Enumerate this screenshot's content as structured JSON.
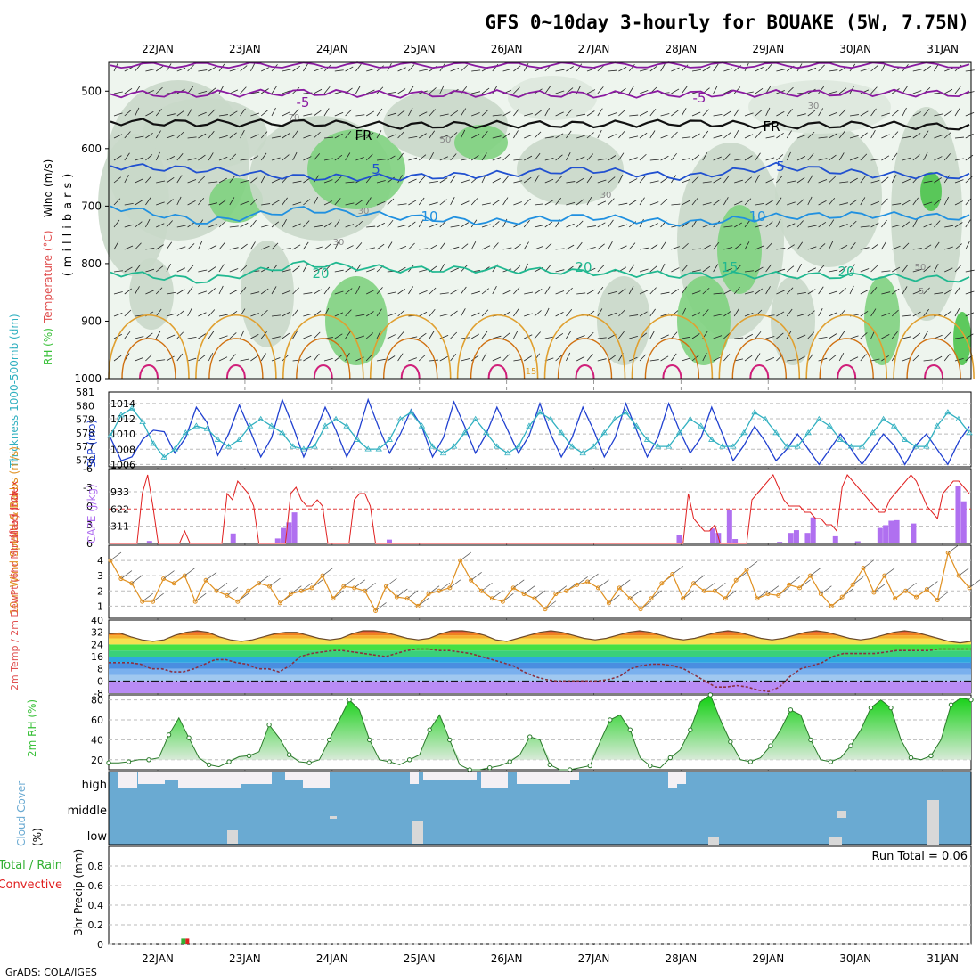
{
  "title": "GFS 0~10day 3-hourly for BOUAKE (5W, 7.75N)",
  "footer": "GrADS: COLA/IGES",
  "colors": {
    "wind": "#000000",
    "temperature": "#e05050",
    "rh": "#38c038",
    "thickness": "#30b0c0",
    "slp": "#2040d0",
    "lifted_index": "#e02020",
    "cape": "#b070f0",
    "wind10m": "#e09020",
    "cloud": "#6aaad2",
    "precip_total": "#33b033",
    "precip_conv": "#e02020"
  },
  "chart_data": [
    {
      "type": "heatmap",
      "panel": "upper-air",
      "ylabel_parts": [
        "RH (%)",
        "Temperature (°C)",
        "Wind (m/s)"
      ],
      "ylabel_mb": "(millibars)",
      "categories": [
        "22JAN",
        "23JAN",
        "24JAN",
        "25JAN",
        "26JAN",
        "27JAN",
        "28JAN",
        "29JAN",
        "30JAN",
        "31JAN"
      ],
      "y_ticks": [
        500,
        600,
        700,
        800,
        900,
        1000
      ],
      "ylim": [
        450,
        1000
      ],
      "series": [
        {
          "name": "-5",
          "values": [
            505,
            505,
            502,
            506,
            504,
            506,
            505,
            504,
            503,
            505
          ]
        },
        {
          "name": "FR",
          "values": [
            553,
            556,
            555,
            560,
            558,
            558,
            555,
            560,
            558,
            563
          ]
        },
        {
          "name": "5",
          "values": [
            630,
            637,
            650,
            650,
            645,
            636,
            650,
            630,
            645,
            648
          ]
        },
        {
          "name": "10",
          "values": [
            700,
            728,
            705,
            718,
            728,
            718,
            730,
            718,
            715,
            720
          ]
        },
        {
          "name": "20",
          "values": [
            815,
            830,
            800,
            810,
            810,
            815,
            820,
            820,
            822,
            828
          ]
        }
      ],
      "contour_labels": [
        "-5",
        "-5",
        "FR",
        "FR",
        "5",
        "5",
        "10",
        "10",
        "20",
        "20",
        "20",
        "15",
        "15",
        "5",
        "30",
        "30",
        "30",
        "50",
        "50",
        "70",
        "30"
      ]
    },
    {
      "type": "line",
      "panel": "thickness-slp",
      "ylabel_left": "Thickness 1000-500mb (dm)",
      "ylabel_right": "SLP (mb)",
      "y_ticks_left": [
        576,
        577,
        578,
        579,
        580,
        581
      ],
      "y_ticks_right": [
        1006,
        1008,
        1010,
        1012,
        1014
      ],
      "series": [
        {
          "name": "SLP (mb)",
          "values": [
            1009.5,
            1006.5,
            1007.0,
            1009.3,
            1010.5,
            1010.3,
            1007.5,
            1009.5,
            1013.5,
            1011.5,
            1007.2,
            1010.0,
            1013.8,
            1010.5,
            1007.0,
            1009.5,
            1014.5,
            1011.0,
            1007.0,
            1010.0,
            1013.5,
            1010.5,
            1007.0,
            1009.8,
            1014.5,
            1010.8,
            1007.5,
            1010.0,
            1013.2,
            1011.0,
            1007.0,
            1009.5,
            1014.2,
            1011.0,
            1007.5,
            1010.0,
            1013.5,
            1010.5,
            1007.5,
            1009.8,
            1014.0,
            1010.0,
            1007.0,
            1009.5,
            1013.5,
            1010.5,
            1007.0,
            1009.5,
            1014.0,
            1010.5,
            1007.0,
            1009.5,
            1014.0,
            1010.5,
            1007.5,
            1009.5,
            1013.5,
            1010.0,
            1006.5,
            1008.5,
            1011.0,
            1009.0,
            1006.5,
            1008.0,
            1010.0,
            1008.0,
            1006.0,
            1008.0,
            1010.0,
            1008.0,
            1006.0,
            1008.0,
            1010.0,
            1008.5,
            1006.0,
            1008.5,
            1010.0,
            1008.0,
            1006.0,
            1009.0,
            1011.0
          ]
        },
        {
          "name": "Thickness (dm)",
          "values": [
            577.8,
            579.3,
            579.8,
            578.8,
            577.2,
            576.2,
            576.8,
            578.0,
            578.5,
            578.3,
            577.5,
            577.0,
            577.5,
            578.5,
            579.0,
            578.5,
            578.0,
            577.0,
            576.8,
            577.0,
            578.5,
            579.0,
            578.5,
            577.5,
            576.8,
            576.8,
            577.5,
            579.0,
            579.5,
            578.5,
            577.0,
            576.5,
            577.0,
            578.0,
            579.0,
            578.0,
            577.0,
            576.5,
            577.0,
            578.5,
            579.5,
            579.0,
            578.0,
            577.0,
            576.5,
            577.0,
            578.0,
            579.0,
            579.5,
            578.5,
            577.5,
            577.0,
            577.0,
            578.0,
            579.0,
            578.5,
            577.5,
            577.0,
            577.0,
            578.0,
            579.5,
            579.0,
            578.0,
            577.0,
            577.0,
            578.0,
            579.0,
            578.5,
            577.5,
            577.0,
            577.0,
            578.0,
            579.0,
            578.5,
            577.5,
            577.0,
            577.0,
            578.5,
            579.5,
            579.0,
            578.0
          ]
        }
      ]
    },
    {
      "type": "bar",
      "panel": "cape-li",
      "ylabel_left": "Lifted Index",
      "ylabel_right": "CAPE (J/kg)",
      "y_ticks_left": [
        -6,
        -3,
        0,
        3,
        6
      ],
      "y_ticks_right": [
        311,
        622,
        933
      ],
      "cape_values": [
        0,
        0,
        0,
        0,
        0,
        0,
        0,
        45,
        0,
        0,
        0,
        0,
        0,
        0,
        0,
        0,
        0,
        0,
        0,
        0,
        0,
        0,
        180,
        0,
        0,
        0,
        0,
        0,
        0,
        0,
        90,
        280,
        380,
        560,
        0,
        0,
        0,
        0,
        0,
        0,
        0,
        0,
        0,
        0,
        0,
        0,
        0,
        0,
        0,
        0,
        70,
        0,
        0,
        0,
        0,
        0,
        0,
        0,
        0,
        0,
        0,
        0,
        0,
        0,
        0,
        0,
        0,
        0,
        0,
        0,
        0,
        0,
        0,
        0,
        0,
        0,
        0,
        0,
        0,
        0,
        0,
        0,
        0,
        0,
        0,
        0,
        0,
        0,
        0,
        0,
        0,
        0,
        0,
        0,
        0,
        0,
        0,
        0,
        0,
        0,
        0,
        0,
        150,
        0,
        0,
        0,
        0,
        0,
        270,
        190,
        0,
        600,
        80,
        0,
        0,
        0,
        0,
        0,
        0,
        0,
        30,
        0,
        190,
        240,
        0,
        190,
        470,
        0,
        0,
        0,
        130,
        0,
        0,
        0,
        40,
        0,
        0,
        0,
        280,
        330,
        410,
        420,
        0,
        0,
        360,
        0,
        0,
        0,
        0,
        0,
        0,
        0,
        1040,
        760,
        0
      ],
      "li_values": [
        6,
        6,
        6,
        6,
        6,
        6,
        -2,
        -5,
        0,
        6,
        6,
        6,
        6,
        6,
        4,
        6,
        6,
        6,
        6,
        6,
        6,
        6,
        -2,
        -1,
        -4,
        -3,
        -2,
        0,
        6,
        6,
        6,
        6,
        6,
        6,
        -2,
        -3,
        -1,
        0,
        0,
        -1,
        0,
        6,
        6,
        6,
        6,
        6,
        -1,
        -2,
        -2,
        0,
        6,
        6,
        6,
        6,
        6,
        6,
        6,
        6,
        6,
        6,
        6,
        6,
        6,
        6,
        6,
        6,
        6,
        6,
        6,
        6,
        6,
        6,
        6,
        6,
        6,
        6,
        6,
        6,
        6,
        6,
        6,
        6,
        6,
        6,
        6,
        6,
        6,
        6,
        6,
        6,
        6,
        6,
        6,
        6,
        6,
        6,
        6,
        6,
        6,
        6,
        6,
        6,
        6,
        6,
        6,
        6,
        6,
        6,
        6,
        -2,
        2,
        3,
        4,
        4,
        3,
        6,
        6,
        6,
        6,
        6,
        6,
        -1,
        -2,
        -3,
        -4,
        -5,
        -3,
        -1,
        0,
        0,
        0,
        1,
        1,
        2,
        2,
        3,
        3,
        4,
        -3,
        -5,
        -4,
        -3,
        -2,
        -1,
        0,
        1,
        1,
        -1,
        -2,
        -3,
        -4,
        -5,
        -4,
        -2,
        0,
        1,
        2,
        -2,
        -3,
        -4,
        -4,
        -3,
        -2
      ]
    },
    {
      "type": "line",
      "panel": "wind10m",
      "ylabel": "10m Wind Speed & Barbs (m/s)",
      "y_ticks": [
        1,
        2,
        3,
        4
      ],
      "values": [
        4.0,
        2.8,
        2.5,
        1.3,
        1.3,
        2.8,
        2.5,
        3.0,
        1.3,
        2.7,
        2.0,
        1.7,
        1.3,
        2.0,
        2.5,
        2.3,
        1.2,
        1.8,
        2.0,
        2.2,
        3.0,
        1.5,
        2.3,
        2.2,
        2.0,
        0.7,
        2.3,
        1.6,
        1.5,
        1.0,
        1.8,
        2.0,
        2.2,
        4.0,
        2.7,
        2.0,
        1.5,
        1.3,
        2.2,
        1.8,
        1.5,
        0.8,
        1.8,
        2.0,
        2.4,
        2.6,
        2.2,
        1.2,
        2.2,
        1.5,
        0.8,
        1.5,
        2.5,
        3.1,
        1.5,
        2.5,
        2.0,
        2.0,
        1.5,
        2.7,
        3.4,
        1.5,
        1.8,
        1.7,
        2.4,
        2.2,
        3.0,
        1.8,
        1.0,
        1.6,
        2.4,
        3.5,
        1.9,
        3.0,
        1.5,
        2.0,
        1.6,
        2.1,
        1.4,
        4.5,
        3.0,
        2.2
      ]
    },
    {
      "type": "area",
      "panel": "temp-dewpt",
      "ylabel": "2m Temp / 2m DewPt (6hr Min/Max) (°C)",
      "y_ticks": [
        -8,
        0,
        8,
        16,
        24,
        32,
        40
      ],
      "series": [
        {
          "name": "2m Temp",
          "values": [
            31,
            31.5,
            29,
            27,
            26,
            27,
            30,
            32,
            33,
            32,
            29,
            27,
            26,
            27,
            29,
            31,
            32,
            32,
            30,
            28,
            27,
            28,
            31,
            33,
            33,
            32,
            30,
            28,
            27,
            28,
            31,
            33,
            33,
            32,
            30,
            27,
            26,
            28,
            30,
            32,
            33,
            32,
            30,
            28,
            27,
            28,
            30,
            32,
            33,
            32,
            30,
            28,
            27,
            28,
            30,
            32,
            33,
            32,
            30,
            28,
            27,
            28,
            30,
            32,
            33,
            32,
            30,
            28,
            27,
            28,
            30,
            32,
            33,
            32,
            30,
            28,
            26,
            25,
            26
          ]
        },
        {
          "name": "2m DewPt",
          "values": [
            12,
            12,
            12,
            11,
            8,
            8,
            6,
            6,
            8,
            11,
            14,
            14,
            12,
            11,
            8,
            8,
            6,
            10,
            16,
            18,
            19,
            20,
            20,
            19,
            18,
            17,
            16,
            18,
            20,
            21,
            21,
            20,
            20,
            19,
            18,
            16,
            14,
            12,
            10,
            6,
            3,
            1,
            0,
            0,
            0,
            0,
            0,
            1,
            3,
            8,
            10,
            11,
            11,
            10,
            8,
            4,
            0,
            -4,
            -4,
            -3,
            -4,
            -6,
            -7,
            -4,
            3,
            8,
            10,
            12,
            16,
            18,
            18,
            18,
            18,
            19,
            20,
            20,
            20,
            20,
            21,
            21,
            21,
            21
          ]
        }
      ]
    },
    {
      "type": "area",
      "panel": "rh2m",
      "ylabel": "2m RH (%)",
      "y_ticks": [
        20,
        40,
        60,
        80
      ],
      "values": [
        17,
        17,
        18,
        20,
        20,
        22,
        45,
        62,
        42,
        22,
        15,
        13,
        18,
        23,
        24,
        28,
        55,
        42,
        25,
        18,
        17,
        20,
        40,
        60,
        80,
        70,
        40,
        20,
        18,
        15,
        20,
        25,
        50,
        65,
        40,
        15,
        10,
        10,
        12,
        14,
        18,
        25,
        43,
        40,
        15,
        10,
        10,
        12,
        14,
        38,
        60,
        65,
        50,
        22,
        14,
        12,
        22,
        30,
        50,
        78,
        85,
        60,
        38,
        20,
        18,
        22,
        34,
        50,
        70,
        65,
        40,
        20,
        18,
        22,
        34,
        50,
        72,
        80,
        72,
        40,
        22,
        20,
        24,
        40,
        75,
        82,
        80
      ]
    },
    {
      "type": "heatmap",
      "panel": "cloud",
      "ylabel": "Cloud Cover (%)",
      "rows": [
        "high",
        "middle",
        "low"
      ]
    },
    {
      "type": "bar",
      "panel": "precip",
      "ylabel_left": "Total / Rain",
      "ylabel_left2": "Convective",
      "ylabel": "3hr Precip (mm)",
      "y_ticks": [
        0,
        0.2,
        0.4,
        0.6,
        0.8
      ],
      "ylim": [
        0,
        1.0
      ],
      "annotation": "Run Total = 0.06",
      "values": [
        0,
        0,
        0,
        0,
        0,
        0,
        0,
        0.06,
        0,
        0,
        0,
        0,
        0,
        0,
        0,
        0,
        0,
        0,
        0,
        0,
        0,
        0,
        0,
        0,
        0,
        0,
        0,
        0,
        0,
        0,
        0,
        0,
        0,
        0,
        0,
        0,
        0,
        0,
        0,
        0,
        0,
        0,
        0,
        0,
        0,
        0,
        0,
        0,
        0,
        0,
        0,
        0,
        0,
        0,
        0,
        0,
        0,
        0,
        0,
        0,
        0,
        0,
        0,
        0,
        0,
        0,
        0,
        0,
        0,
        0,
        0,
        0,
        0,
        0,
        0,
        0,
        0,
        0,
        0,
        0,
        0
      ]
    }
  ]
}
